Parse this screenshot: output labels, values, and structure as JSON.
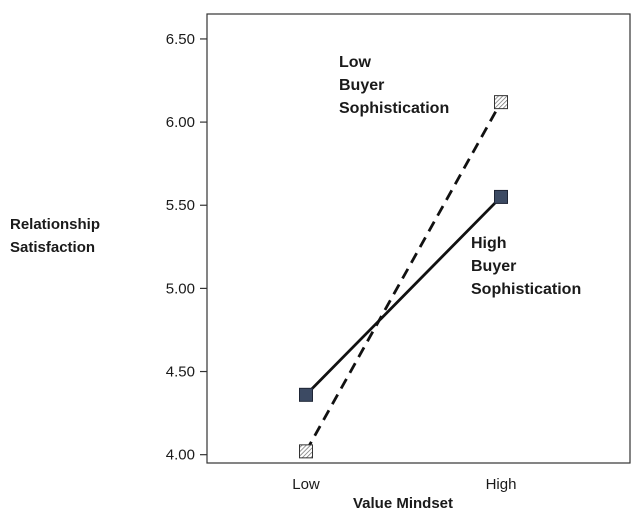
{
  "chart_data": {
    "type": "line",
    "title": "",
    "xlabel": "Value Mindset",
    "ylabel": [
      "Relationship",
      "Satisfaction"
    ],
    "categories": [
      "Low",
      "High"
    ],
    "ylim": [
      3.95,
      6.65
    ],
    "yticks": [
      "4.00",
      "4.50",
      "5.00",
      "5.50",
      "6.00",
      "6.50"
    ],
    "ytick_values": [
      4.0,
      4.5,
      5.0,
      5.5,
      6.0,
      6.5
    ],
    "grid": false,
    "legend": "none",
    "series": [
      {
        "key": "low",
        "name_lines": [
          "Low",
          "Buyer",
          "Sophistication"
        ],
        "values": [
          4.02,
          6.12
        ],
        "line_style": "dashed",
        "marker": "hatched-square",
        "color": "#111111"
      },
      {
        "key": "high",
        "name_lines": [
          "High",
          "Buyer",
          "Sophistication"
        ],
        "values": [
          4.36,
          5.55
        ],
        "line_style": "solid",
        "marker": "filled-square",
        "color": "#111111",
        "marker_color": "#3c4a63"
      }
    ]
  }
}
